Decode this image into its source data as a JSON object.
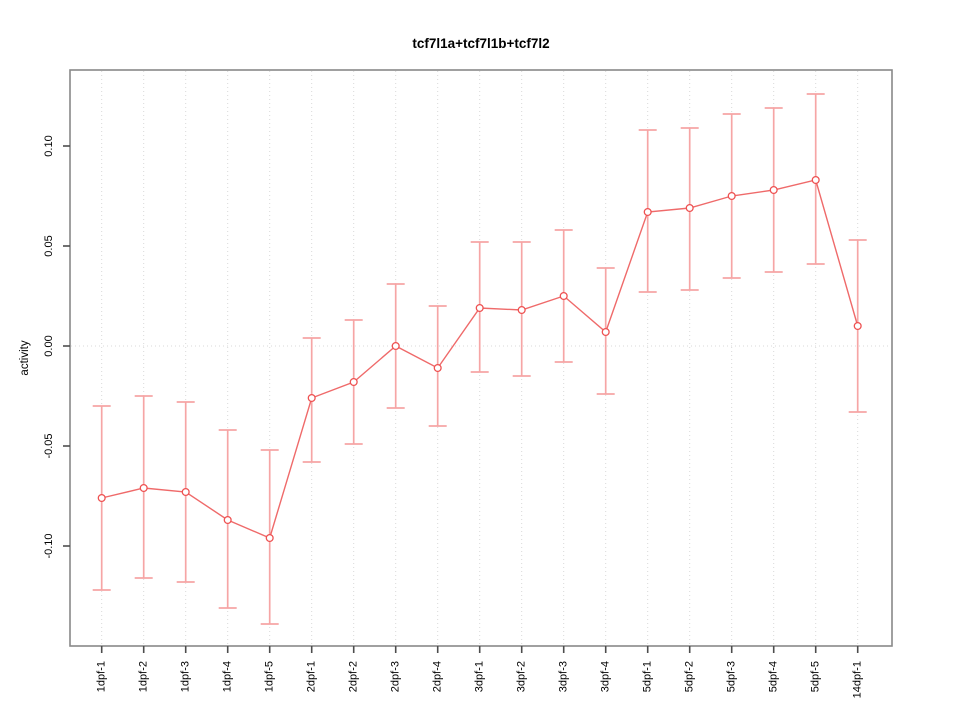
{
  "chart_data": {
    "type": "line",
    "title": "tcf7l1a+tcf7l1b+tcf7l2",
    "xlabel": "",
    "ylabel": "activity",
    "legend_position": "none",
    "categories": [
      "1dpf-1",
      "1dpf-2",
      "1dpf-3",
      "1dpf-4",
      "1dpf-5",
      "2dpf-1",
      "2dpf-2",
      "2dpf-3",
      "2dpf-4",
      "3dpf-1",
      "3dpf-2",
      "3dpf-3",
      "3dpf-4",
      "5dpf-1",
      "5dpf-2",
      "5dpf-3",
      "5dpf-4",
      "5dpf-5",
      "14dpf-1"
    ],
    "series": [
      {
        "name": "activity",
        "marker": "open-circle",
        "values": [
          -0.076,
          -0.071,
          -0.073,
          -0.087,
          -0.096,
          -0.026,
          -0.018,
          0.0,
          -0.011,
          0.019,
          0.018,
          0.025,
          0.007,
          0.067,
          0.069,
          0.075,
          0.078,
          0.083,
          0.01
        ],
        "error_low": [
          -0.122,
          -0.116,
          -0.118,
          -0.131,
          -0.139,
          -0.058,
          -0.049,
          -0.031,
          -0.04,
          -0.013,
          -0.015,
          -0.008,
          -0.024,
          0.027,
          0.028,
          0.034,
          0.037,
          0.041,
          -0.033
        ],
        "error_high": [
          -0.03,
          -0.025,
          -0.028,
          -0.042,
          -0.052,
          0.004,
          0.013,
          0.031,
          0.02,
          0.052,
          0.052,
          0.058,
          0.039,
          0.108,
          0.109,
          0.116,
          0.119,
          0.126,
          0.053
        ]
      }
    ],
    "yticks": [
      -0.1,
      -0.05,
      0.0,
      0.05,
      0.1
    ],
    "ytick_labels": [
      "-0.10",
      "-0.05",
      "0.00",
      "0.05",
      "0.10"
    ],
    "ylim": [
      -0.15,
      0.138
    ],
    "grid": {
      "vertical": "dotted line at every category",
      "horizontal": "dotted line at zero only",
      "style": "dotted"
    },
    "colors": {
      "background": "#ffffff",
      "box": "#898989",
      "tick": "#4d4d4d",
      "text": "#000000",
      "grid": "#d9d9d9",
      "line": "#ef6a6a",
      "error_bar": "#f6a5a5",
      "point_stroke": "#ee5151",
      "point_fill": "#ffffff"
    }
  }
}
